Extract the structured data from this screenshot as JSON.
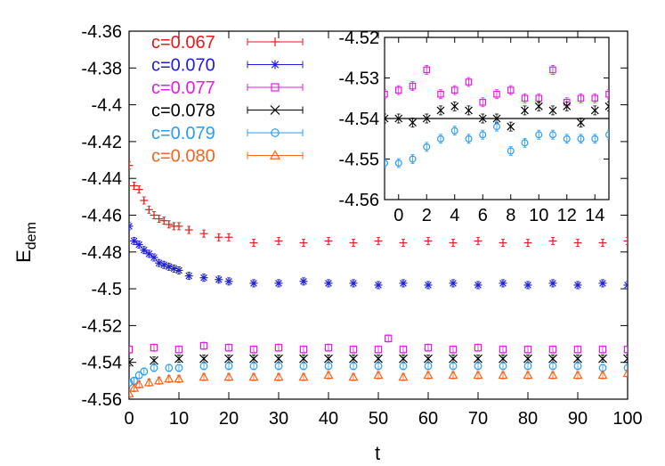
{
  "chart_data": [
    {
      "type": "scatter",
      "title": "",
      "xlabel": "t",
      "ylabel": "E",
      "ylabel_subscript": "dem",
      "xlim": [
        0,
        100
      ],
      "ylim": [
        -4.56,
        -4.36
      ],
      "xticks": [
        "0",
        "10",
        "20",
        "30",
        "40",
        "50",
        "60",
        "70",
        "80",
        "90",
        "100"
      ],
      "yticks": [
        "-4.36",
        "-4.38",
        "-4.4",
        "-4.42",
        "-4.44",
        "-4.46",
        "-4.48",
        "-4.5",
        "-4.52",
        "-4.54",
        "-4.56"
      ],
      "legend_position": "top-left",
      "series": [
        {
          "name": "c=0.067",
          "color": "#e41a1c",
          "marker": "plus",
          "x": [
            0,
            1,
            2,
            3,
            4,
            5,
            6,
            7,
            8,
            9,
            10,
            12,
            15,
            18,
            20,
            25,
            30,
            35,
            40,
            45,
            50,
            55,
            60,
            65,
            70,
            75,
            80,
            85,
            90,
            95,
            100
          ],
          "y": [
            -4.433,
            -4.444,
            -4.446,
            -4.452,
            -4.457,
            -4.46,
            -4.462,
            -4.463,
            -4.465,
            -4.466,
            -4.466,
            -4.468,
            -4.47,
            -4.472,
            -4.472,
            -4.475,
            -4.474,
            -4.475,
            -4.474,
            -4.475,
            -4.474,
            -4.475,
            -4.474,
            -4.475,
            -4.474,
            -4.475,
            -4.475,
            -4.474,
            -4.475,
            -4.475,
            -4.474
          ]
        },
        {
          "name": "c=0.070",
          "color": "#1f1fd6",
          "marker": "star",
          "x": [
            0,
            1,
            2,
            3,
            4,
            5,
            6,
            7,
            8,
            9,
            10,
            12,
            15,
            18,
            20,
            25,
            30,
            35,
            40,
            45,
            50,
            55,
            60,
            65,
            70,
            75,
            80,
            85,
            90,
            95,
            100
          ],
          "y": [
            -4.466,
            -4.474,
            -4.476,
            -4.479,
            -4.481,
            -4.483,
            -4.486,
            -4.487,
            -4.488,
            -4.489,
            -4.49,
            -4.493,
            -4.494,
            -4.495,
            -4.496,
            -4.497,
            -4.497,
            -4.496,
            -4.497,
            -4.497,
            -4.498,
            -4.497,
            -4.498,
            -4.497,
            -4.498,
            -4.497,
            -4.498,
            -4.497,
            -4.498,
            -4.497,
            -4.498
          ]
        },
        {
          "name": "c=0.077",
          "color": "#e11ee1",
          "marker": "square",
          "x": [
            0,
            5,
            10,
            15,
            20,
            25,
            30,
            35,
            40,
            45,
            50,
            52,
            55,
            60,
            65,
            70,
            75,
            80,
            85,
            90,
            95,
            100
          ],
          "y": [
            -4.533,
            -4.532,
            -4.533,
            -4.531,
            -4.532,
            -4.533,
            -4.532,
            -4.533,
            -4.532,
            -4.533,
            -4.533,
            -4.527,
            -4.533,
            -4.532,
            -4.533,
            -4.532,
            -4.533,
            -4.533,
            -4.533,
            -4.533,
            -4.533,
            -4.533
          ]
        },
        {
          "name": "c=0.078",
          "color": "#000000",
          "marker": "cross",
          "x": [
            0,
            5,
            10,
            15,
            20,
            25,
            30,
            35,
            40,
            45,
            50,
            55,
            60,
            65,
            70,
            75,
            80,
            85,
            90,
            95,
            100
          ],
          "y": [
            -4.54,
            -4.539,
            -4.538,
            -4.538,
            -4.538,
            -4.538,
            -4.538,
            -4.538,
            -4.538,
            -4.538,
            -4.538,
            -4.538,
            -4.538,
            -4.538,
            -4.538,
            -4.538,
            -4.538,
            -4.538,
            -4.538,
            -4.538,
            -4.538
          ]
        },
        {
          "name": "c=0.079",
          "color": "#2a9df4",
          "marker": "circle",
          "x": [
            0,
            1,
            2,
            3,
            5,
            8,
            10,
            15,
            20,
            25,
            30,
            35,
            40,
            45,
            50,
            55,
            60,
            65,
            70,
            75,
            80,
            85,
            90,
            95,
            100
          ],
          "y": [
            -4.551,
            -4.55,
            -4.547,
            -4.545,
            -4.543,
            -4.543,
            -4.543,
            -4.542,
            -4.542,
            -4.542,
            -4.542,
            -4.542,
            -4.542,
            -4.542,
            -4.542,
            -4.542,
            -4.542,
            -4.542,
            -4.542,
            -4.542,
            -4.542,
            -4.542,
            -4.542,
            -4.543,
            -4.543
          ]
        },
        {
          "name": "c=0.080",
          "color": "#f26522",
          "marker": "triangle",
          "x": [
            0,
            1,
            2,
            4,
            6,
            8,
            10,
            15,
            20,
            25,
            30,
            35,
            40,
            45,
            50,
            55,
            60,
            65,
            70,
            75,
            80,
            85,
            90,
            95,
            100
          ],
          "y": [
            -4.557,
            -4.554,
            -4.552,
            -4.551,
            -4.55,
            -4.549,
            -4.549,
            -4.548,
            -4.548,
            -4.548,
            -4.548,
            -4.548,
            -4.547,
            -4.548,
            -4.547,
            -4.548,
            -4.547,
            -4.547,
            -4.547,
            -4.547,
            -4.547,
            -4.547,
            -4.547,
            -4.547,
            -4.546
          ]
        }
      ]
    },
    {
      "type": "scatter",
      "title": "",
      "xlabel": "",
      "ylabel": "",
      "xlim": [
        -1,
        15
      ],
      "ylim": [
        -4.56,
        -4.52
      ],
      "xticks": [
        "0",
        "2",
        "4",
        "6",
        "8",
        "10",
        "12",
        "14"
      ],
      "yticks": [
        "-4.52",
        "-4.53",
        "-4.54",
        "-4.55",
        "-4.56"
      ],
      "reference_line_y": -4.54,
      "series": [
        {
          "name": "c=0.077",
          "color": "#e11ee1",
          "marker": "square",
          "x": [
            -1,
            0,
            1,
            2,
            3,
            4,
            5,
            6,
            7,
            8,
            9,
            10,
            11,
            12,
            13,
            14,
            15
          ],
          "y": [
            -4.534,
            -4.533,
            -4.532,
            -4.528,
            -4.534,
            -4.533,
            -4.531,
            -4.536,
            -4.534,
            -4.533,
            -4.535,
            -4.535,
            -4.528,
            -4.536,
            -4.535,
            -4.535,
            -4.534
          ]
        },
        {
          "name": "c=0.078",
          "color": "#000000",
          "marker": "cross",
          "x": [
            -1,
            0,
            1,
            2,
            3,
            4,
            5,
            6,
            7,
            8,
            9,
            10,
            11,
            12,
            13,
            14,
            15
          ],
          "y": [
            -4.54,
            -4.54,
            -4.541,
            -4.54,
            -4.538,
            -4.537,
            -4.538,
            -4.54,
            -4.54,
            -4.542,
            -4.538,
            -4.537,
            -4.538,
            -4.537,
            -4.541,
            -4.538,
            -4.537
          ]
        },
        {
          "name": "c=0.079",
          "color": "#2a9df4",
          "marker": "circle",
          "x": [
            -1,
            0,
            1,
            2,
            3,
            4,
            5,
            6,
            7,
            8,
            9,
            10,
            11,
            12,
            13,
            14,
            15
          ],
          "y": [
            -4.551,
            -4.551,
            -4.55,
            -4.547,
            -4.545,
            -4.543,
            -4.545,
            -4.544,
            -4.542,
            -4.548,
            -4.546,
            -4.544,
            -4.544,
            -4.545,
            -4.545,
            -4.545,
            -4.544
          ]
        }
      ]
    }
  ]
}
